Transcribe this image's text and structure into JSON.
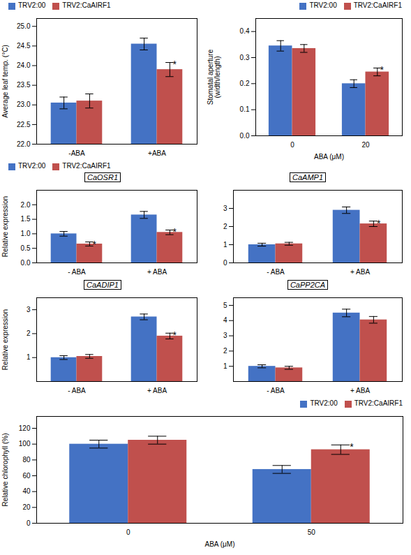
{
  "chart_data": [
    {
      "type": "bar",
      "categories": [
        "-ABA",
        "+ABA"
      ],
      "series": [
        {
          "name": "TRV2:00",
          "color": "#4472C4",
          "values": [
            23.05,
            24.55
          ],
          "errors": [
            0.15,
            0.15
          ]
        },
        {
          "name": "TRV2:CaAIRF1",
          "color": "#C0504D",
          "values": [
            23.1,
            23.9
          ],
          "errors": [
            0.18,
            0.18
          ]
        }
      ],
      "ylabel": "Average leaf temp. (°C)",
      "ylim": [
        22,
        25.2
      ],
      "yticks": [
        {
          "value": 22,
          "label": "22.0"
        },
        22.5,
        {
          "value": 23,
          "label": "23.0"
        },
        23.5,
        {
          "value": 24,
          "label": "24.0"
        },
        24.5,
        {
          "value": 25,
          "label": "25.0"
        }
      ],
      "legend": "upper left",
      "annotations": [
        {
          "text": "*",
          "category": "+ABA",
          "series": "TRV2:CaAIRF1"
        }
      ]
    },
    {
      "type": "bar",
      "categories": [
        "0",
        "20"
      ],
      "series": [
        {
          "name": "TRV2:00",
          "color": "#4472C4",
          "values": [
            0.345,
            0.2
          ],
          "errors": [
            0.02,
            0.015
          ]
        },
        {
          "name": "TRV2:CaAIRF1",
          "color": "#C0504D",
          "values": [
            0.335,
            0.245
          ],
          "errors": [
            0.015,
            0.015
          ]
        }
      ],
      "xlabel": "ABA (μM)",
      "ylabel": "Stomatal aperture\n(width/length)",
      "ylim": [
        0,
        0.45
      ],
      "yticks": [
        {
          "value": 0,
          "label": "0.0"
        },
        0.1,
        0.2,
        0.3,
        0.4
      ],
      "legend": "upper right",
      "annotations": [
        {
          "text": "*",
          "category": "20",
          "series": "TRV2:CaAIRF1"
        }
      ]
    },
    {
      "type": "bar",
      "title": "CaOSR1",
      "categories": [
        "- ABA",
        "+ ABA"
      ],
      "series": [
        {
          "name": "TRV2:00",
          "color": "#4472C4",
          "values": [
            1.0,
            1.65
          ],
          "errors": [
            0.08,
            0.12
          ]
        },
        {
          "name": "TRV2:CaAIRF1",
          "color": "#C0504D",
          "values": [
            0.65,
            1.05
          ],
          "errors": [
            0.07,
            0.08
          ]
        }
      ],
      "ylabel": "Relative expression",
      "ylim": [
        0,
        2.5
      ],
      "yticks": [
        {
          "value": 0,
          "label": "0.0"
        },
        0.5,
        {
          "value": 1,
          "label": "1.0"
        },
        1.5,
        {
          "value": 2,
          "label": "2.0"
        }
      ],
      "legend": "upper left",
      "annotations": [
        {
          "text": "*",
          "category": "- ABA",
          "series": "TRV2:CaAIRF1"
        },
        {
          "text": "*",
          "category": "+ ABA",
          "series": "TRV2:CaAIRF1"
        }
      ]
    },
    {
      "type": "bar",
      "title": "CaAMP1",
      "categories": [
        "- ABA",
        "+ ABA"
      ],
      "series": [
        {
          "name": "TRV2:00",
          "color": "#4472C4",
          "values": [
            1.0,
            2.9
          ],
          "errors": [
            0.08,
            0.18
          ]
        },
        {
          "name": "TRV2:CaAIRF1",
          "color": "#C0504D",
          "values": [
            1.05,
            2.15
          ],
          "errors": [
            0.08,
            0.15
          ]
        }
      ],
      "ylim": [
        0,
        4
      ],
      "yticks": [
        0,
        1,
        2,
        3
      ],
      "annotations": [
        {
          "text": "*",
          "category": "+ ABA",
          "series": "TRV2:CaAIRF1"
        }
      ]
    },
    {
      "type": "bar",
      "title": "CaADIP1",
      "categories": [
        "- ABA",
        "+ ABA"
      ],
      "series": [
        {
          "name": "TRV2:00",
          "color": "#4472C4",
          "values": [
            1.0,
            2.7
          ],
          "errors": [
            0.08,
            0.12
          ]
        },
        {
          "name": "TRV2:CaAIRF1",
          "color": "#C0504D",
          "values": [
            1.05,
            1.9
          ],
          "errors": [
            0.08,
            0.12
          ]
        }
      ],
      "ylabel": "Relative expression",
      "ylim": [
        0,
        3.5
      ],
      "yticks": [
        1,
        2,
        3
      ],
      "annotations": [
        {
          "text": "*",
          "category": "+ ABA",
          "series": "TRV2:CaAIRF1"
        }
      ]
    },
    {
      "type": "bar",
      "title": "CaPP2CA",
      "categories": [
        "- ABA",
        "+ ABA"
      ],
      "series": [
        {
          "name": "TRV2:00",
          "color": "#4472C4",
          "values": [
            1.0,
            4.5
          ],
          "errors": [
            0.1,
            0.25
          ]
        },
        {
          "name": "TRV2:CaAIRF1",
          "color": "#C0504D",
          "values": [
            0.9,
            4.05
          ],
          "errors": [
            0.1,
            0.22
          ]
        }
      ],
      "ylim": [
        0,
        5.5
      ],
      "yticks": [
        1,
        2,
        3,
        4,
        5
      ]
    },
    {
      "type": "bar",
      "categories": [
        "0",
        "50"
      ],
      "series": [
        {
          "name": "TRV2:00",
          "color": "#4472C4",
          "values": [
            100,
            68
          ],
          "errors": [
            5,
            5
          ]
        },
        {
          "name": "TRV2:CaAIRF1",
          "color": "#C0504D",
          "values": [
            105,
            93
          ],
          "errors": [
            5,
            6
          ]
        }
      ],
      "xlabel": "ABA (μM)",
      "ylabel": "Relative chlorophyll (%)",
      "ylim": [
        0,
        135
      ],
      "yticks": [
        0,
        20,
        40,
        60,
        80,
        100,
        120
      ],
      "legend": "upper right",
      "annotations": [
        {
          "text": "*",
          "category": "50",
          "series": "TRV2:CaAIRF1"
        }
      ]
    }
  ]
}
